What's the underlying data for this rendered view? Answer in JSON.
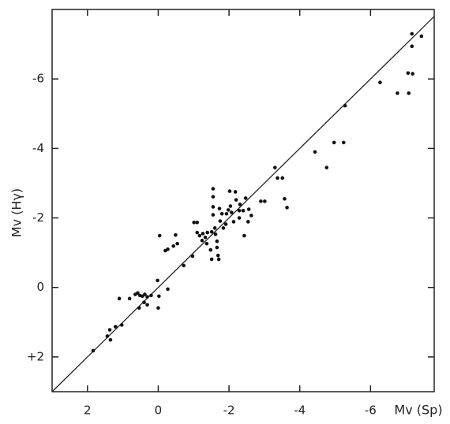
{
  "chart_data": {
    "type": "scatter",
    "x_label": "Mv (Sp)",
    "y_label": "Mv (Hγ)",
    "xlim": [
      3,
      -7.8
    ],
    "ylim": [
      3,
      -8
    ],
    "xticks": [
      2,
      0,
      -2,
      -4,
      -6
    ],
    "yticks": [
      {
        "value": 2,
        "label": "+2"
      },
      0,
      -2,
      -4,
      -6
    ],
    "identity_line": true,
    "color": "#111111",
    "x": [
      1.84,
      1.37,
      1.44,
      1.35,
      1.21,
      1.03,
      1.1,
      0.81,
      0.65,
      0.58,
      0.52,
      0.45,
      0.38,
      0.31,
      0.2,
      0.54,
      0.4,
      0.31,
      0.02,
      -0.02,
      0.0,
      -0.27,
      -0.04,
      -0.2,
      -0.27,
      -0.43,
      -0.49,
      -0.54,
      -0.72,
      -0.97,
      -1.01,
      -1.1,
      -1.1,
      -1.17,
      -1.26,
      -1.24,
      -1.33,
      -1.39,
      -1.37,
      -1.48,
      -1.51,
      -1.51,
      -1.55,
      -1.55,
      -1.55,
      -1.55,
      -1.6,
      -1.62,
      -1.66,
      -1.66,
      -1.69,
      -1.71,
      -1.73,
      -1.75,
      -1.8,
      -1.84,
      -1.91,
      -1.93,
      -1.98,
      -2.02,
      -2.04,
      -2.07,
      -2.13,
      -2.18,
      -2.2,
      -2.29,
      -2.29,
      -2.31,
      -2.4,
      -2.43,
      -2.47,
      -2.56,
      -2.54,
      -2.63,
      -2.9,
      -3.01,
      -3.3,
      -3.37,
      -3.51,
      -3.57,
      -3.64,
      -4.43,
      -4.76,
      -4.97,
      -5.24,
      -5.28,
      -6.27,
      -6.76,
      -7.06,
      -7.19,
      -7.08,
      -7.17,
      -7.17,
      -7.44
    ],
    "y": [
      1.82,
      1.22,
      1.4,
      1.51,
      1.13,
      1.08,
      0.32,
      0.32,
      0.2,
      0.16,
      0.23,
      0.25,
      0.2,
      0.27,
      0.23,
      0.59,
      0.43,
      0.5,
      -0.2,
      0.25,
      0.59,
      0.05,
      -1.49,
      -1.06,
      -1.1,
      -1.19,
      -1.51,
      -1.26,
      -0.63,
      -0.9,
      -1.87,
      -1.87,
      -1.58,
      -1.49,
      -1.55,
      -1.35,
      -1.44,
      -1.58,
      -1.26,
      -1.08,
      -0.81,
      -1.6,
      -2.84,
      -2.61,
      -2.32,
      -2.09,
      -1.71,
      -1.53,
      -1.33,
      -1.15,
      -0.92,
      -0.81,
      -2.27,
      -1.91,
      -2.12,
      -1.71,
      -1.82,
      -2.12,
      -2.23,
      -2.77,
      -2.34,
      -2.16,
      -1.89,
      -2.75,
      -2.52,
      -2.21,
      -2.0,
      -2.39,
      -2.21,
      -1.49,
      -2.57,
      -2.25,
      -1.89,
      -2.07,
      -2.48,
      -2.48,
      -3.45,
      -3.15,
      -3.15,
      -2.55,
      -2.3,
      -3.9,
      -3.45,
      -4.17,
      -4.17,
      -5.23,
      -5.9,
      -5.59,
      -6.17,
      -6.15,
      -5.59,
      -6.94,
      -7.3,
      -7.23
    ]
  }
}
